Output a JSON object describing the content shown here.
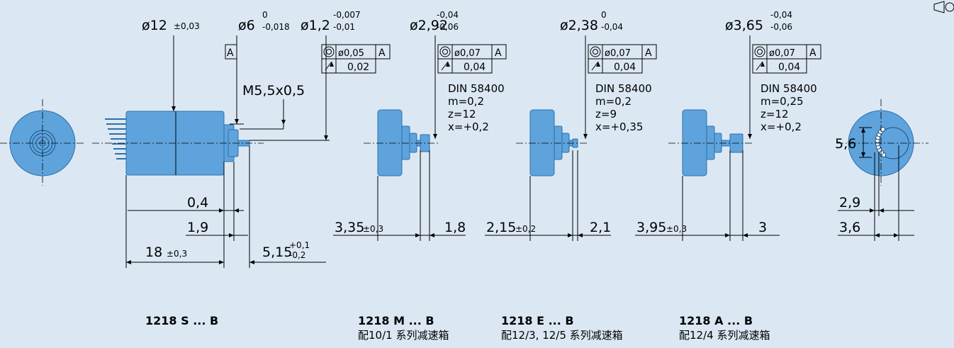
{
  "top_dims": [
    {
      "text": "ø12",
      "tol": "±0,03"
    },
    {
      "text": "ø6",
      "upper": "0",
      "lower": "-0,018"
    },
    {
      "text": "ø1,2",
      "upper": "-0,007",
      "lower": "-0,01"
    },
    {
      "text": "ø2,92",
      "upper": "-0,04",
      "lower": "-0,06"
    },
    {
      "text": "ø2,38",
      "upper": "0",
      "lower": "-0,04"
    },
    {
      "text": "ø3,65",
      "upper": "-0,04",
      "lower": "-0,06"
    }
  ],
  "datum": "A",
  "frames": [
    {
      "concentricity": "ø0,05",
      "datum": "A",
      "runout": "0,02"
    },
    {
      "concentricity": "ø0,07",
      "datum": "A",
      "runout": "0,04"
    },
    {
      "concentricity": "ø0,07",
      "datum": "A",
      "runout": "0,04"
    },
    {
      "concentricity": "ø0,07",
      "datum": "A",
      "runout": "0,04"
    }
  ],
  "thread": "M5,5x0,5",
  "gear_specs": [
    {
      "standard": "DIN 58400",
      "module": "m=0,2",
      "teeth": "z=12",
      "shift": "x=+0,2"
    },
    {
      "standard": "DIN 58400",
      "module": "m=0,2",
      "teeth": "z=9",
      "shift": "x=+0,35"
    },
    {
      "standard": "DIN 58400",
      "module": "m=0,25",
      "teeth": "z=12",
      "shift": "x=+0,2"
    }
  ],
  "dims": [
    {
      "text": "0,4"
    },
    {
      "text": "1,9"
    },
    {
      "text": "18",
      "tol": "±0,3"
    },
    {
      "text": "5,15",
      "upper": "+0,1",
      "lower": "-0,2"
    },
    {
      "text": "3,35",
      "tol": "±0,3"
    },
    {
      "text": "1,8"
    },
    {
      "text": "2,15",
      "tol": "±0,2"
    },
    {
      "text": "2,1"
    },
    {
      "text": "3,95",
      "tol": "±0,3"
    },
    {
      "text": "3"
    },
    {
      "text": "5,6"
    },
    {
      "text": "2,9"
    },
    {
      "text": "3,6"
    }
  ],
  "variants": [
    {
      "model": "1218 S ... B"
    },
    {
      "model": "1218 M ... B",
      "note": "配10/1 系列减速箱"
    },
    {
      "model": "1218 E ... B",
      "note": "配12/3, 12/5 系列减速箱"
    },
    {
      "model": "1218 A ... B",
      "note": "配12/4 系列减速箱"
    }
  ]
}
